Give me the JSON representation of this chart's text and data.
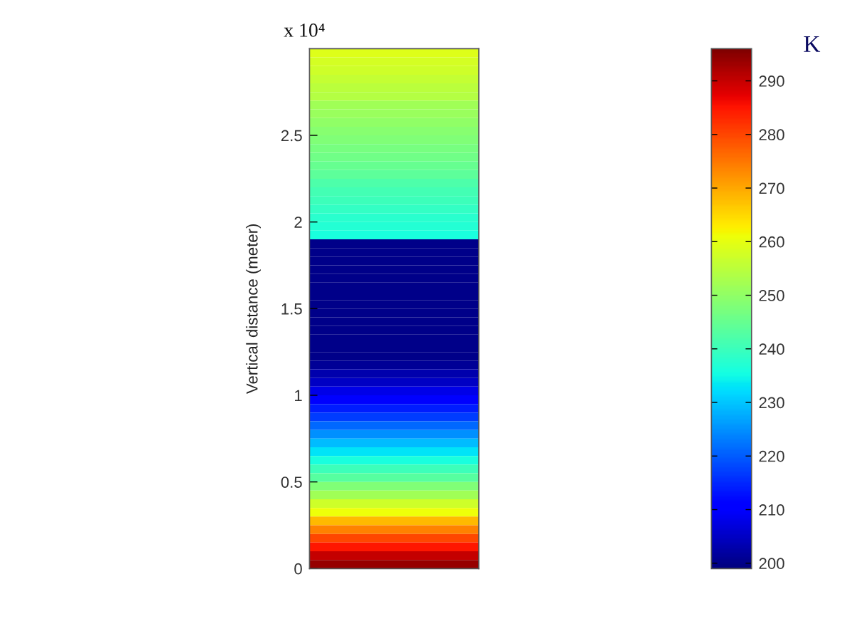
{
  "chart_data": {
    "type": "heatmap",
    "ylabel": "Vertical distance (meter)",
    "clabel": "K",
    "annotations": [
      "x 10⁴"
    ],
    "categories": [
      null
    ],
    "cells": [
      [
        259
      ],
      [
        258
      ],
      [
        257
      ],
      [
        256
      ],
      [
        255
      ],
      [
        254
      ],
      [
        252
      ],
      [
        251
      ],
      [
        250
      ],
      [
        249
      ],
      [
        248
      ],
      [
        247
      ],
      [
        246
      ],
      [
        245
      ],
      [
        244
      ],
      [
        242
      ],
      [
        241
      ],
      [
        240
      ],
      [
        239
      ],
      [
        238
      ],
      [
        237
      ],
      [
        236
      ],
      [
        200
      ],
      [
        200
      ],
      [
        200
      ],
      [
        200
      ],
      [
        200
      ],
      [
        200
      ],
      [
        200
      ],
      [
        200
      ],
      [
        200
      ],
      [
        200
      ],
      [
        200
      ],
      [
        200
      ],
      [
        200
      ],
      [
        200
      ],
      [
        201
      ],
      [
        203
      ],
      [
        205
      ],
      [
        208
      ],
      [
        211
      ],
      [
        214
      ],
      [
        217
      ],
      [
        221
      ],
      [
        225
      ],
      [
        229
      ],
      [
        233
      ],
      [
        236
      ],
      [
        240
      ],
      [
        243
      ],
      [
        248
      ],
      [
        252
      ],
      [
        257
      ],
      [
        261
      ],
      [
        268
      ],
      [
        274
      ],
      [
        280
      ],
      [
        285
      ],
      [
        290
      ],
      [
        294
      ]
    ],
    "clim": [
      199,
      296
    ],
    "cticks": [
      200,
      210,
      220,
      230,
      240,
      250,
      260,
      270,
      280,
      290
    ],
    "ylim": [
      0,
      3
    ],
    "yticks": [
      0,
      0.5,
      1,
      1.5,
      2,
      2.5
    ],
    "tick_labels": "y"
  }
}
